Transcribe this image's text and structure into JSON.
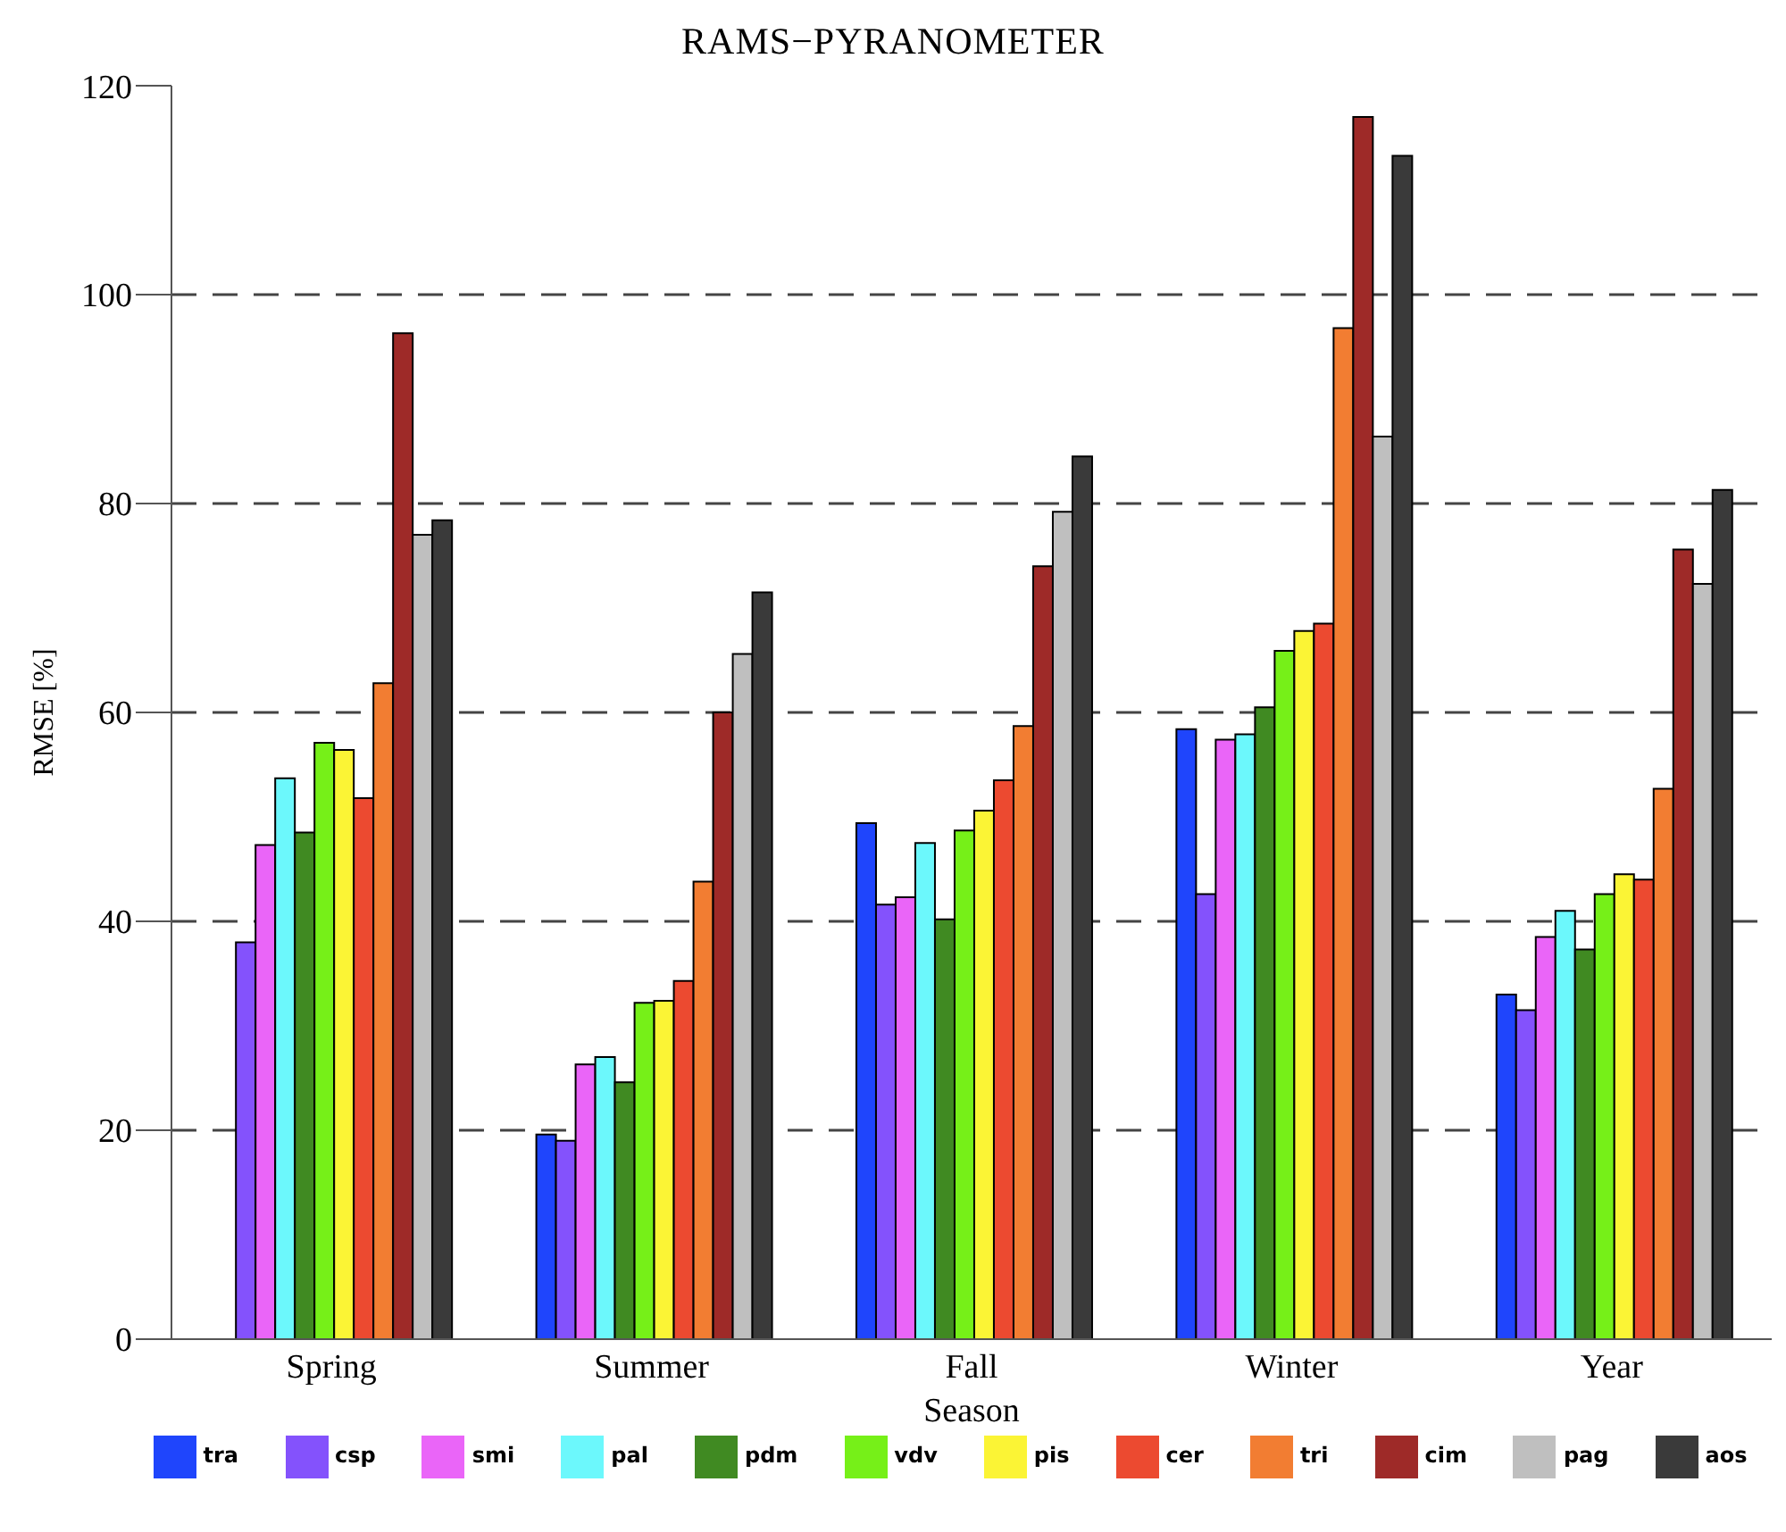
{
  "chart_data": {
    "type": "bar",
    "title": "RAMS−PYRANOMETER",
    "xlabel": "Season",
    "ylabel": "RMSE [%]",
    "categories": [
      "Spring",
      "Summer",
      "Fall",
      "Winter",
      "Year"
    ],
    "series": [
      {
        "name": "tra",
        "color": "#1f45fc",
        "values": [
          null,
          19.6,
          49.4,
          58.4,
          33
        ]
      },
      {
        "name": "csp",
        "color": "#8452fc",
        "values": [
          38,
          19,
          41.6,
          42.6,
          31.5
        ]
      },
      {
        "name": "smi",
        "color": "#ea65f8",
        "values": [
          47.3,
          26.3,
          42.3,
          57.4,
          38.5
        ]
      },
      {
        "name": "pal",
        "color": "#6cf8fc",
        "values": [
          53.7,
          27,
          47.5,
          57.9,
          41
        ]
      },
      {
        "name": "pdm",
        "color": "#408a22",
        "values": [
          48.5,
          24.6,
          40.2,
          60.5,
          37.3
        ]
      },
      {
        "name": "vdv",
        "color": "#76f018",
        "values": [
          57.1,
          32.2,
          48.7,
          65.9,
          42.6
        ]
      },
      {
        "name": "pis",
        "color": "#fbf435",
        "values": [
          56.4,
          32.4,
          50.6,
          67.8,
          44.5
        ]
      },
      {
        "name": "cer",
        "color": "#ec4a30",
        "values": [
          51.8,
          34.3,
          53.5,
          68.5,
          44
        ]
      },
      {
        "name": "tri",
        "color": "#f27d32",
        "values": [
          62.8,
          43.8,
          58.7,
          96.8,
          52.7
        ]
      },
      {
        "name": "cim",
        "color": "#9e2a28",
        "values": [
          96.3,
          60,
          74,
          117,
          75.6
        ]
      },
      {
        "name": "pag",
        "color": "#bfbfbf",
        "values": [
          77,
          65.6,
          79.2,
          86.4,
          72.3
        ]
      },
      {
        "name": "aos",
        "color": "#3a3a3a",
        "values": [
          78.4,
          71.5,
          84.5,
          113.3,
          81.3
        ]
      }
    ],
    "ylim": [
      0,
      120
    ],
    "yticks": [
      0,
      20,
      40,
      60,
      80,
      100,
      120
    ],
    "grid": "y",
    "legend": "bottom"
  }
}
